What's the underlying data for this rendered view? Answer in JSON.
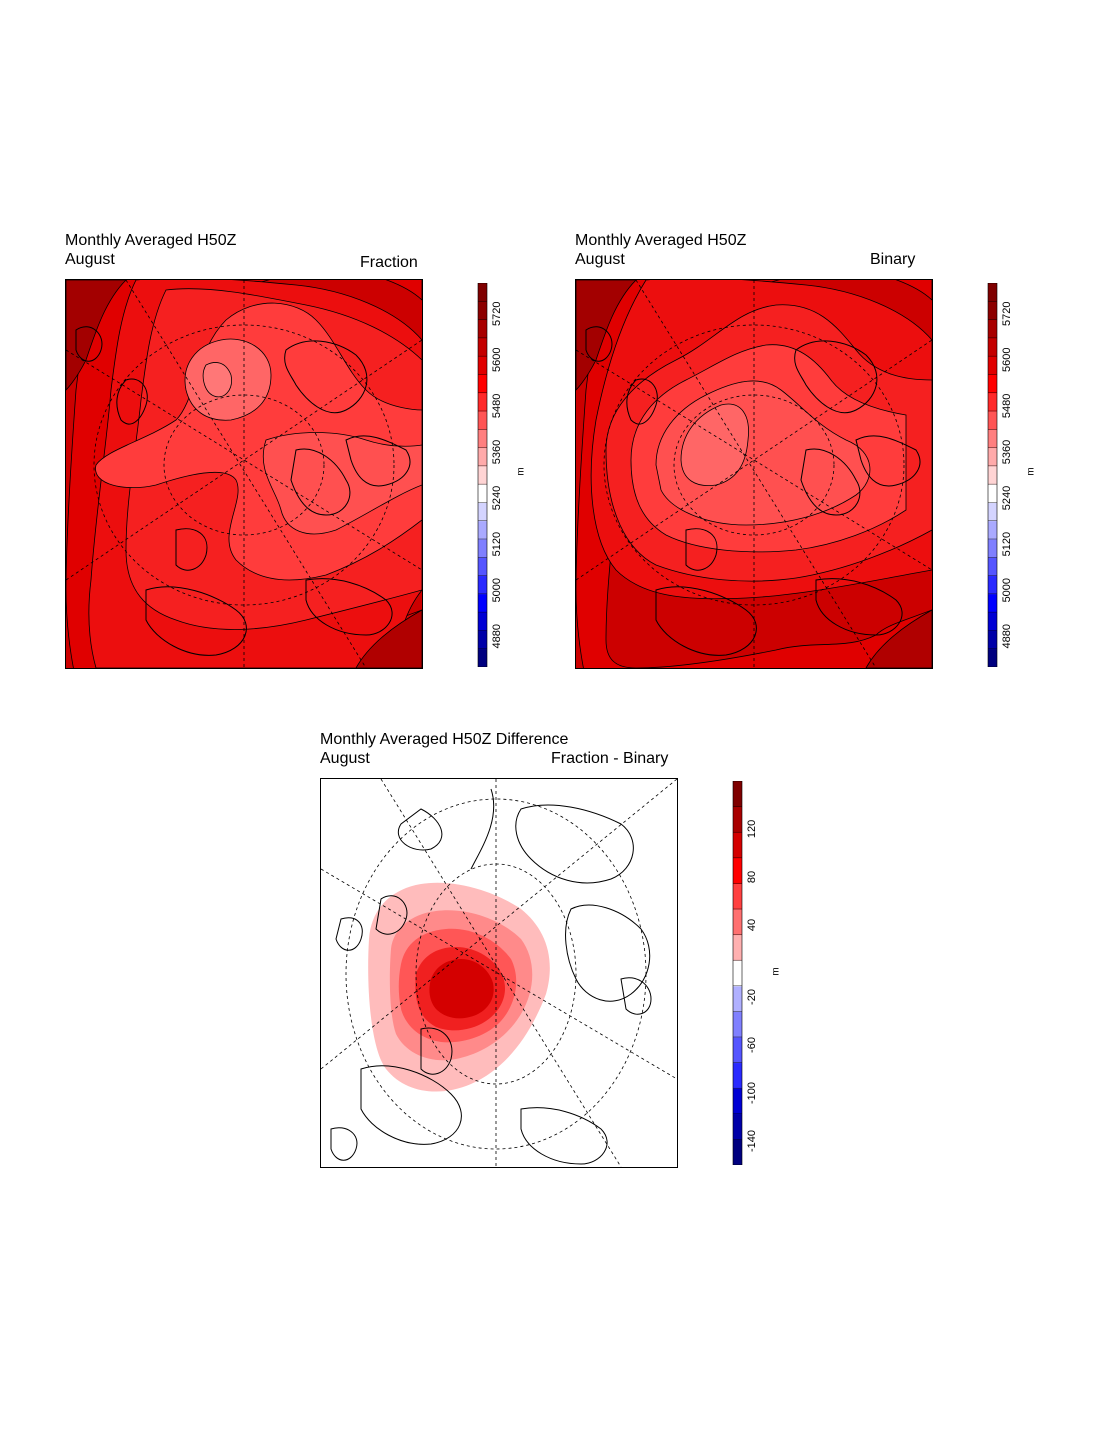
{
  "panels": [
    {
      "id": "fraction",
      "title": "Monthly Averaged H50Z",
      "subtitle": "August",
      "right_label": "Fraction"
    },
    {
      "id": "binary",
      "title": "Monthly Averaged H50Z",
      "subtitle": "August",
      "right_label": "Binary"
    },
    {
      "id": "difference",
      "title": "Monthly Averaged H50Z Difference",
      "subtitle": "August",
      "right_label": "Fraction - Binary"
    }
  ],
  "chart_data": [
    {
      "type": "heatmap",
      "title": "Monthly Averaged H50Z",
      "subtitle": "August",
      "label": "Fraction",
      "units": "m",
      "colorbar": {
        "tick_labels": [
          "4880",
          "5000",
          "5120",
          "5240",
          "5360",
          "5480",
          "5600",
          "5720"
        ],
        "tick_values": [
          4880,
          5000,
          5120,
          5240,
          5360,
          5480,
          5600,
          5720
        ],
        "range": [
          4800,
          5800
        ],
        "colors": [
          "#00007f",
          "#0000a8",
          "#0000d4",
          "#0000ff",
          "#2a2aff",
          "#5555ff",
          "#7f7fff",
          "#aaaaff",
          "#d4d4ff",
          "#ffffff",
          "#ffd4d4",
          "#ffaaaa",
          "#ff7f7f",
          "#ff5555",
          "#ff2a2a",
          "#ff0000",
          "#d40000",
          "#a80000",
          "#7f0000"
        ]
      },
      "contour_levels_visible": [
        5360,
        5420,
        5480,
        5540,
        5600,
        5660,
        5720,
        5780
      ]
    },
    {
      "type": "heatmap",
      "title": "Monthly Averaged H50Z",
      "subtitle": "August",
      "label": "Binary",
      "units": "m",
      "colorbar": {
        "tick_labels": [
          "4880",
          "5000",
          "5120",
          "5240",
          "5360",
          "5480",
          "5600",
          "5720"
        ],
        "tick_values": [
          4880,
          5000,
          5120,
          5240,
          5360,
          5480,
          5600,
          5720
        ],
        "range": [
          4800,
          5800
        ]
      }
    },
    {
      "type": "heatmap",
      "title": "Monthly Averaged H50Z Difference",
      "subtitle": "August",
      "label": "Fraction - Binary",
      "units": "m",
      "colorbar": {
        "tick_labels": [
          "-140",
          "-100",
          "-60",
          "-20",
          "40",
          "80",
          "120"
        ],
        "tick_values": [
          -140,
          -100,
          -60,
          -20,
          40,
          80,
          120
        ],
        "range": [
          -160,
          160
        ]
      },
      "max_anomaly": 140
    }
  ],
  "units_label": "m",
  "colors": {
    "land_outline": "#000000",
    "grid_dash": "#000000"
  }
}
